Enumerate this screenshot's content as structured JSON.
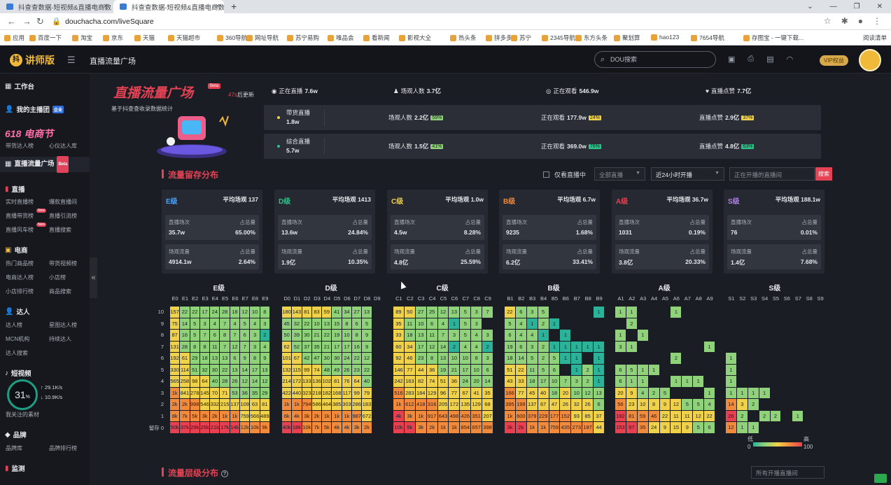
{
  "browser": {
    "tabs": [
      {
        "title": "抖查查数据-短视频&直播电商数..."
      },
      {
        "title": "抖查查数据-短视频&直播电商数..."
      }
    ],
    "url": "douchacha.com/liveSquare",
    "bookmarks": [
      "应用",
      "百度一下",
      "淘宝",
      "京东",
      "天猫",
      "天猫超市",
      "360导航",
      "网址导航",
      "苏宁易购",
      "唯品会",
      "看新闻",
      "影视大全",
      "热头条",
      "拼多多",
      "苏宁",
      "2345导航",
      "东方头条",
      "聚划算",
      "hao123",
      "7654导航",
      "存图宝 - 一键下载...",
      "阅读清单"
    ]
  },
  "header": {
    "logo": "讲师版",
    "title": "直播流量广场",
    "search_placeholder": "DOU搜索",
    "vip": "VIP权益"
  },
  "sidebar": {
    "workbench": "工作台",
    "my_team": "我的主播团",
    "team_badge": "企业",
    "promo": "618 电商节",
    "promo_links": [
      "带货达人榜",
      "心仪达人库"
    ],
    "live_square": "直播流量广场",
    "live_square_badge": "Beta",
    "live": "直播",
    "live_links": [
      "实时直播榜",
      "爆款直播间",
      "直播带货榜",
      "直播引流榜",
      "直播风车榜",
      "直播搜索"
    ],
    "new_badge": "New",
    "ecom": "电商",
    "ecom_links": [
      "热门商品榜",
      "带货视频榜",
      "电商达人榜",
      "小店榜",
      "小店排行榜",
      "商品搜索"
    ],
    "talent": "达人",
    "talent_links": [
      "达人榜",
      "星图达人榜",
      "MCN机构",
      "持续达人",
      "达人搜索"
    ],
    "video": "短视频",
    "video_links": [
      "我关注的素材"
    ],
    "brand": "品牌",
    "brand_links": [
      "品牌库",
      "品牌排行榜"
    ],
    "monitor": "监测",
    "gauge": {
      "value": "31",
      "unit": "%",
      "up": "29.1K/s",
      "down": "10.9K/s"
    }
  },
  "banner": {
    "title": "直播流量广场",
    "beta": "Beta",
    "updated_num": "47s",
    "updated_suffix": "后更新",
    "desc": "基于抖查查收录数据统计",
    "top_stats": [
      {
        "icon": "broadcast-icon",
        "label": "正在直播",
        "value": "7.6w"
      },
      {
        "icon": "user-icon",
        "label": "场观人数",
        "value": "3.7亿"
      },
      {
        "icon": "eye-icon",
        "label": "正在观看",
        "value": "546.9w"
      },
      {
        "icon": "heart-icon",
        "label": "直播点赞",
        "value": "7.7亿"
      }
    ],
    "rows": [
      {
        "label": "带货直播",
        "count": "1.8w",
        "dot": "#f0d24a",
        "views": "2.2亿",
        "views_pct": "59%",
        "watching": "177.9w",
        "watching_pct": "24%",
        "likes": "2.9亿",
        "likes_pct": "37%"
      },
      {
        "label": "综合直播",
        "count": "5.7w",
        "dot": "#2bc48a",
        "views": "1.5亿",
        "views_pct": "41%",
        "watching": "369.0w",
        "watching_pct": "76%",
        "likes": "4.8亿",
        "likes_pct": "63%"
      }
    ],
    "views_label": "场观人数",
    "watching_label": "正在观看",
    "likes_label": "直播点赞"
  },
  "retention": {
    "title": "流量留存分布",
    "only_live": "仅看直播中",
    "category": "全部直播",
    "time_range": "近24小时开播",
    "search_placeholder": "正在开播的直播间",
    "search_btn": "搜索",
    "levels": [
      {
        "name": "E级",
        "color": "#4aa3ff",
        "avg": "平均场观 137",
        "sessions": "35.7w",
        "sessions_pct": "65.00%",
        "traffic": "4914.1w",
        "traffic_pct": "2.64%"
      },
      {
        "name": "D级",
        "color": "#2bc48a",
        "avg": "平均场观 1413",
        "sessions": "13.6w",
        "sessions_pct": "24.84%",
        "traffic": "1.9亿",
        "traffic_pct": "10.35%"
      },
      {
        "name": "C级",
        "color": "#f0d24a",
        "avg": "平均场观 1.0w",
        "sessions": "4.5w",
        "sessions_pct": "8.28%",
        "traffic": "4.8亿",
        "traffic_pct": "25.59%"
      },
      {
        "name": "B级",
        "color": "#f28a3c",
        "avg": "平均场观 6.7w",
        "sessions": "9235",
        "sessions_pct": "1.68%",
        "traffic": "6.2亿",
        "traffic_pct": "33.41%"
      },
      {
        "name": "A级",
        "color": "#e84050",
        "avg": "平均场观 36.7w",
        "sessions": "1031",
        "sessions_pct": "0.19%",
        "traffic": "3.8亿",
        "traffic_pct": "20.33%"
      },
      {
        "name": "S级",
        "color": "#b47ee8",
        "avg": "平均场观 188.1w",
        "sessions": "76",
        "sessions_pct": "0.01%",
        "traffic": "1.4亿",
        "traffic_pct": "7.68%"
      }
    ],
    "sessions_label": "直播场次",
    "traffic_label": "场观流量",
    "share_label": "占总量",
    "row_labels": [
      "10",
      "9",
      "8",
      "7",
      "6",
      "5",
      "4",
      "3",
      "2",
      "1",
      "留存 0"
    ],
    "legend_low": "低",
    "legend_high": "高",
    "legend_min": "0",
    "legend_max": "100"
  },
  "chart_data": {
    "type": "heatmap",
    "rows": [
      "10",
      "9",
      "8",
      "7",
      "6",
      "5",
      "4",
      "3",
      "2",
      "1",
      "0"
    ],
    "color_scale": {
      "min": 0,
      "max": 100,
      "colors": [
        "#2bb39a",
        "#8fd27a",
        "#f0d24a",
        "#f28a3c",
        "#e84050"
      ]
    },
    "panels": [
      {
        "name": "E级",
        "cols": [
          "E0",
          "E1",
          "E2",
          "E3",
          "E4",
          "E5",
          "E6",
          "E7",
          "E8",
          "E9"
        ],
        "cells": [
          [
            "157",
            "22",
            "22",
            "17",
            "24",
            "28",
            "18",
            "12",
            "10",
            "8"
          ],
          [
            "75",
            "14",
            "5",
            "3",
            "4",
            "7",
            "4",
            "5",
            "4",
            "3"
          ],
          [
            "87",
            "16",
            "5",
            "7",
            "6",
            "8",
            "7",
            "6",
            "3",
            "2"
          ],
          [
            "131",
            "28",
            "8",
            "8",
            "11",
            "7",
            "12",
            "7",
            "3",
            "4"
          ],
          [
            "192",
            "61",
            "29",
            "18",
            "13",
            "13",
            "6",
            "9",
            "8",
            "9"
          ],
          [
            "330",
            "114",
            "51",
            "32",
            "30",
            "22",
            "13",
            "14",
            "17",
            "13"
          ],
          [
            "565",
            "258",
            "98",
            "64",
            "40",
            "28",
            "26",
            "12",
            "14",
            "12"
          ],
          [
            "1k",
            "841",
            "278",
            "145",
            "70",
            "71",
            "53",
            "36",
            "35",
            "29"
          ],
          [
            "2k",
            "2k",
            "998",
            "546",
            "332",
            "215",
            "137",
            "109",
            "63",
            "81"
          ],
          [
            "8k",
            "7k",
            "5k",
            "3k",
            "2k",
            "1k",
            "1k",
            "759",
            "566",
            "489"
          ],
          [
            "50k",
            "37k",
            "29k",
            "25k",
            "21k",
            "17k",
            "14k",
            "12k",
            "10k",
            "9k"
          ]
        ]
      },
      {
        "name": "D级",
        "cols": [
          "D0",
          "D1",
          "D2",
          "D3",
          "D4",
          "D5",
          "D6",
          "D7",
          "D8",
          "D9"
        ],
        "cells": [
          [
            "180",
            "143",
            "81",
            "83",
            "59",
            "41",
            "34",
            "27",
            "13",
            ""
          ],
          [
            "45",
            "32",
            "22",
            "10",
            "13",
            "15",
            "8",
            "6",
            "5",
            ""
          ],
          [
            "50",
            "39",
            "30",
            "21",
            "22",
            "19",
            "10",
            "8",
            "9",
            ""
          ],
          [
            "62",
            "52",
            "37",
            "35",
            "21",
            "17",
            "17",
            "16",
            "9",
            ""
          ],
          [
            "101",
            "67",
            "42",
            "47",
            "30",
            "30",
            "24",
            "22",
            "12",
            ""
          ],
          [
            "132",
            "115",
            "99",
            "74",
            "48",
            "49",
            "26",
            "23",
            "22",
            ""
          ],
          [
            "214",
            "172",
            "133",
            "136",
            "102",
            "81",
            "76",
            "64",
            "40",
            ""
          ],
          [
            "422",
            "440",
            "323",
            "218",
            "182",
            "168",
            "117",
            "99",
            "79",
            ""
          ],
          [
            "1k",
            "1k",
            "794",
            "586",
            "464",
            "385",
            "303",
            "286",
            "183",
            ""
          ],
          [
            "6k",
            "4k",
            "3k",
            "2k",
            "1k",
            "1k",
            "1k",
            "987",
            "672",
            ""
          ],
          [
            "40k",
            "18k",
            "10k",
            "7k",
            "5k",
            "4k",
            "4k",
            "3k",
            "2k",
            ""
          ]
        ]
      },
      {
        "name": "C级",
        "cols": [
          "C1",
          "C2",
          "C3",
          "C4",
          "C5",
          "C6",
          "C7",
          "C8",
          "C9"
        ],
        "cells": [
          [
            "89",
            "50",
            "27",
            "25",
            "12",
            "13",
            "5",
            "3",
            "7"
          ],
          [
            "35",
            "11",
            "10",
            "6",
            "4",
            "1",
            "5",
            "3",
            ""
          ],
          [
            "33",
            "18",
            "13",
            "11",
            "7",
            "3",
            "5",
            "4",
            "3"
          ],
          [
            "60",
            "34",
            "17",
            "12",
            "14",
            "2",
            "4",
            "4",
            "2"
          ],
          [
            "92",
            "46",
            "23",
            "8",
            "13",
            "10",
            "10",
            "8",
            "3"
          ],
          [
            "146",
            "77",
            "44",
            "36",
            "19",
            "21",
            "17",
            "10",
            "6"
          ],
          [
            "242",
            "163",
            "82",
            "74",
            "51",
            "36",
            "24",
            "20",
            "14"
          ],
          [
            "516",
            "283",
            "184",
            "129",
            "96",
            "77",
            "67",
            "41",
            "35"
          ],
          [
            "1k",
            "612",
            "418",
            "316",
            "205",
            "172",
            "135",
            "129",
            "68"
          ],
          [
            "4k",
            "3k",
            "1k",
            "917",
            "643",
            "498",
            "426",
            "351",
            "207"
          ],
          [
            "10k",
            "5k",
            "3k",
            "2k",
            "1k",
            "1k",
            "854",
            "657",
            "398"
          ]
        ]
      },
      {
        "name": "B级",
        "cols": [
          "B1",
          "B2",
          "B3",
          "B4",
          "B5",
          "B6",
          "B7",
          "B8",
          "B9"
        ],
        "cells": [
          [
            "22",
            "6",
            "3",
            "5",
            "",
            "",
            "",
            "",
            "1"
          ],
          [
            "5",
            "4",
            "1",
            "2",
            "1",
            "",
            "",
            "",
            ""
          ],
          [
            "6",
            "4",
            "4",
            "1",
            "",
            "1",
            "",
            "",
            ""
          ],
          [
            "19",
            "6",
            "3",
            "2",
            "1",
            "1",
            "1",
            "1",
            "1"
          ],
          [
            "18",
            "14",
            "5",
            "2",
            "5",
            "1",
            "1",
            "",
            "1"
          ],
          [
            "51",
            "22",
            "11",
            "5",
            "6",
            "",
            "1",
            "2",
            "1"
          ],
          [
            "43",
            "33",
            "18",
            "17",
            "10",
            "7",
            "3",
            "2",
            "1"
          ],
          [
            "166",
            "77",
            "45",
            "40",
            "18",
            "20",
            "10",
            "12",
            "13"
          ],
          [
            "395",
            "199",
            "137",
            "67",
            "47",
            "26",
            "32",
            "26",
            "6"
          ],
          [
            "1k",
            "600",
            "379",
            "229",
            "177",
            "152",
            "93",
            "85",
            "37"
          ],
          [
            "3k",
            "2k",
            "1k",
            "1k",
            "759",
            "435",
            "273",
            "187",
            "44"
          ]
        ]
      },
      {
        "name": "A级",
        "cols": [
          "A1",
          "A2",
          "A3",
          "A4",
          "A5",
          "A6",
          "A7",
          "A8",
          "A9"
        ],
        "cells": [
          [
            "1",
            "1",
            "",
            "",
            "",
            "1",
            "",
            "",
            ""
          ],
          [
            "",
            "2",
            "",
            "",
            "",
            "",
            "",
            "",
            ""
          ],
          [
            "1",
            "",
            "1",
            "",
            "",
            "",
            "",
            "",
            ""
          ],
          [
            "3",
            "1",
            "",
            "",
            "",
            "",
            "",
            "",
            "1"
          ],
          [
            "",
            "",
            "",
            "",
            "",
            "2",
            "",
            "",
            ""
          ],
          [
            "6",
            "5",
            "1",
            "1",
            "",
            "",
            "",
            "",
            ""
          ],
          [
            "6",
            "1",
            "1",
            "",
            "",
            "1",
            "1",
            "1",
            ""
          ],
          [
            "20",
            "9",
            "4",
            "2",
            "5",
            "",
            "",
            "",
            "1"
          ],
          [
            "56",
            "23",
            "10",
            "8",
            "9",
            "12",
            "5",
            "5",
            "4"
          ],
          [
            "182",
            "81",
            "59",
            "46",
            "22",
            "11",
            "11",
            "12",
            "22"
          ],
          [
            "153",
            "97",
            "35",
            "24",
            "9",
            "15",
            "9",
            "5",
            "6"
          ]
        ]
      },
      {
        "name": "S级",
        "cols": [
          "S1",
          "S2",
          "S3",
          "S4",
          "S5",
          "S6",
          "S7",
          "S8",
          "S9"
        ],
        "cells": [
          [
            "",
            "",
            "",
            "",
            "",
            "",
            "",
            "",
            ""
          ],
          [
            "",
            "",
            "",
            "",
            "",
            "",
            "",
            "",
            ""
          ],
          [
            "",
            "",
            "",
            "",
            "",
            "",
            "",
            "",
            ""
          ],
          [
            "",
            "",
            "",
            "",
            "",
            "",
            "",
            "",
            ""
          ],
          [
            "1",
            "",
            "",
            "",
            "",
            "",
            "",
            "",
            ""
          ],
          [
            "1",
            "",
            "",
            "",
            "",
            "",
            "",
            "",
            ""
          ],
          [
            "1",
            "",
            "",
            "",
            "",
            "",
            "",
            "",
            ""
          ],
          [
            "1",
            "1",
            "1",
            "1",
            "",
            "",
            "",
            "",
            ""
          ],
          [
            "14",
            "3",
            "2",
            "",
            "",
            "",
            "",
            "",
            ""
          ],
          [
            "26",
            "2",
            "",
            "2",
            "2",
            "",
            "1",
            "",
            ""
          ],
          [
            "12",
            "1",
            "1",
            "",
            "",
            "",
            "",
            "",
            ""
          ]
        ]
      }
    ]
  },
  "bottom": {
    "title": "流量层级分布",
    "select": "所有开播直播间"
  }
}
